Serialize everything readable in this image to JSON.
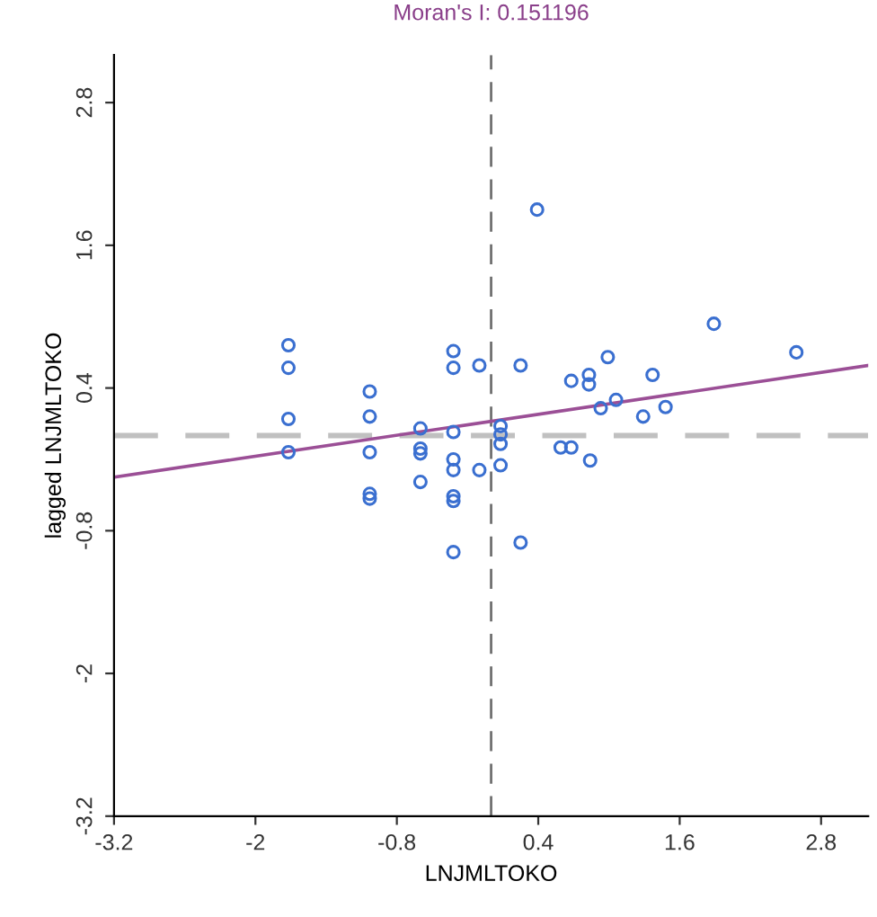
{
  "chart_data": {
    "type": "scatter",
    "title": "Moran's I: 0.151196",
    "xlabel": "LNJMLTOKO",
    "ylabel": "lagged LNJMLTOKO",
    "xlim": [
      -3.2,
      3.2
    ],
    "ylim": [
      -3.2,
      3.2
    ],
    "xticks": [
      -3.2,
      -2,
      -0.8,
      0.4,
      1.6,
      2.8
    ],
    "yticks": [
      -3.2,
      -2,
      -0.8,
      0.4,
      1.6,
      2.8
    ],
    "grid": false,
    "legend": false,
    "marker": "circle",
    "series": [
      {
        "color": "#3a6fd0",
        "x": [
          -1.72,
          -1.72,
          -1.72,
          -1.72,
          -1.03,
          -1.03,
          -1.03,
          -1.03,
          -1.03,
          -0.6,
          -0.6,
          -0.6,
          -0.6,
          -0.32,
          -0.32,
          -0.32,
          -0.32,
          -0.32,
          -0.32,
          -0.32,
          -0.32,
          -0.1,
          -0.1,
          0.08,
          0.08,
          0.08,
          0.08,
          0.25,
          0.25,
          0.39,
          1.89,
          2.59,
          0.99,
          0.68,
          0.83,
          0.83,
          1.37,
          0.93,
          1.06,
          1.29,
          1.48,
          0.59,
          0.68,
          0.84
        ],
        "values": [
          0.76,
          0.57,
          0.14,
          -0.14,
          0.37,
          0.16,
          -0.14,
          -0.49,
          -0.53,
          0.06,
          -0.11,
          -0.15,
          -0.39,
          0.71,
          0.57,
          0.03,
          -0.2,
          -0.29,
          -0.51,
          -0.55,
          -0.98,
          0.59,
          -0.29,
          0.08,
          0.01,
          -0.07,
          -0.25,
          0.59,
          -0.9,
          1.9,
          0.94,
          0.7,
          0.66,
          0.46,
          0.51,
          0.43,
          0.51,
          0.23,
          0.3,
          0.16,
          0.24,
          -0.1,
          -0.1,
          -0.21
        ]
      },
      {
        "type": "line",
        "color": "#9b4f96",
        "line_style": "solid",
        "marker": "none",
        "x": [
          -3.2,
          3.2
        ],
        "values": [
          -0.35,
          0.59
        ]
      }
    ],
    "ref_lines": [
      {
        "axis": "x",
        "value": 0,
        "color": "#707070",
        "line_style": "dashed"
      },
      {
        "axis": "y",
        "value": 0,
        "color": "#c0c0c0",
        "line_style": "dashed"
      }
    ]
  }
}
